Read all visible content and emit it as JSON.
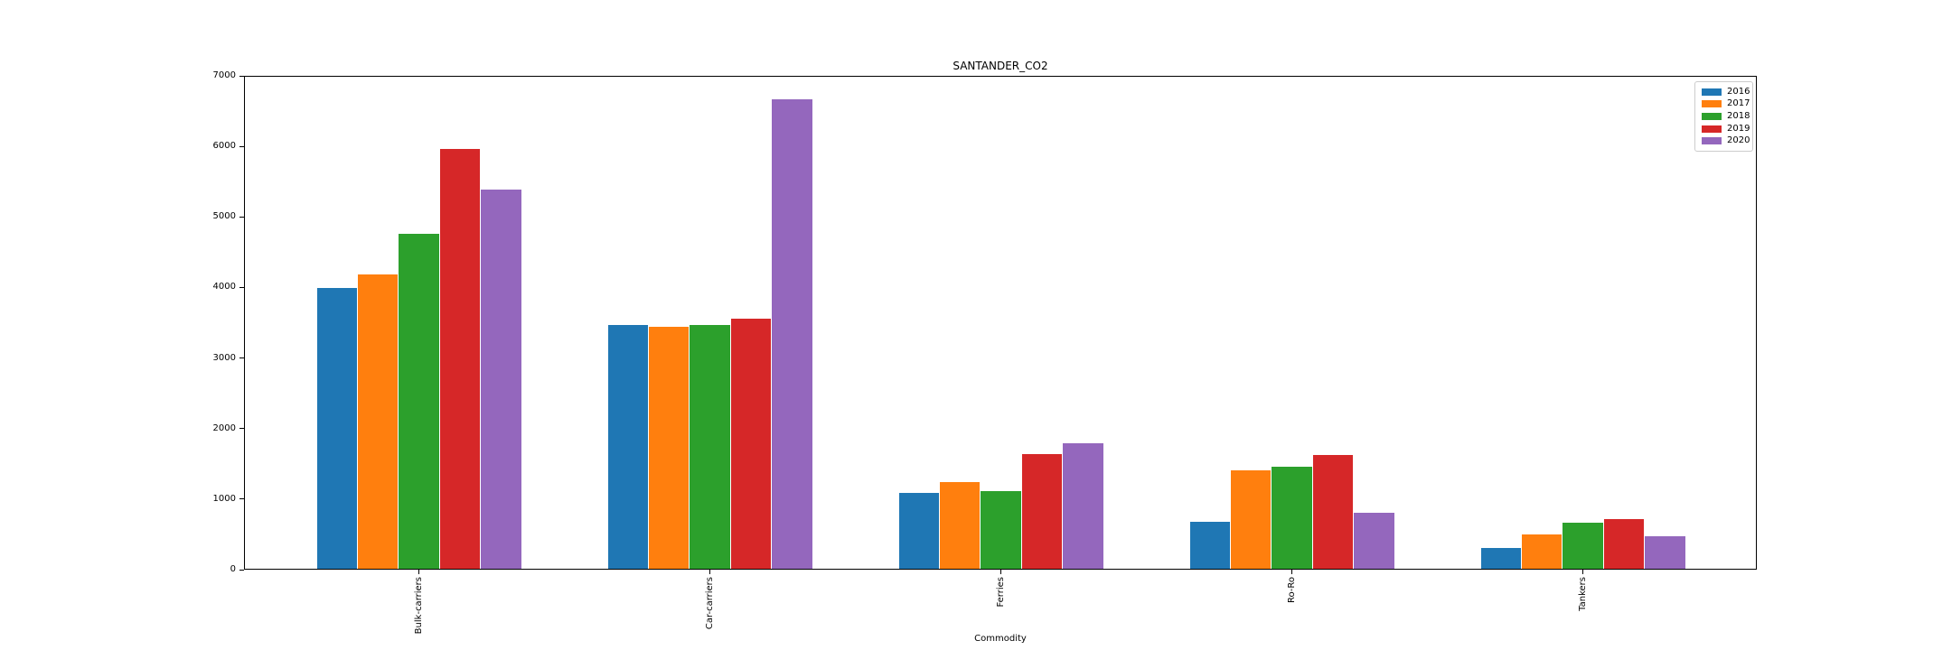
{
  "chart_data": {
    "type": "bar",
    "title": "SANTANDER_CO2",
    "xlabel": "Commodity",
    "ylabel": "",
    "categories": [
      "Bulk-carriers",
      "Car-carriers",
      "Ferries",
      "Ro-Ro",
      "Tankers"
    ],
    "series": [
      {
        "name": "2016",
        "color": "#1f77b4",
        "values": [
          3980,
          3455,
          1075,
          660,
          295
        ]
      },
      {
        "name": "2017",
        "color": "#ff7f0e",
        "values": [
          4170,
          3435,
          1230,
          1395,
          485
        ]
      },
      {
        "name": "2018",
        "color": "#2ca02c",
        "values": [
          4750,
          3455,
          1100,
          1445,
          650
        ]
      },
      {
        "name": "2019",
        "color": "#d62728",
        "values": [
          5950,
          3550,
          1625,
          1610,
          705
        ]
      },
      {
        "name": "2020",
        "color": "#9467bd",
        "values": [
          5380,
          6660,
          1780,
          790,
          460
        ]
      }
    ],
    "ylim": [
      0,
      7000
    ],
    "yticks": [
      0,
      1000,
      2000,
      3000,
      4000,
      5000,
      6000,
      7000
    ],
    "legend_position": "upper right",
    "grid": false,
    "x_tick_rotation": 90,
    "axis_color": "#000000",
    "legend_border_color": "#cccccc",
    "background_color": "#ffffff"
  }
}
